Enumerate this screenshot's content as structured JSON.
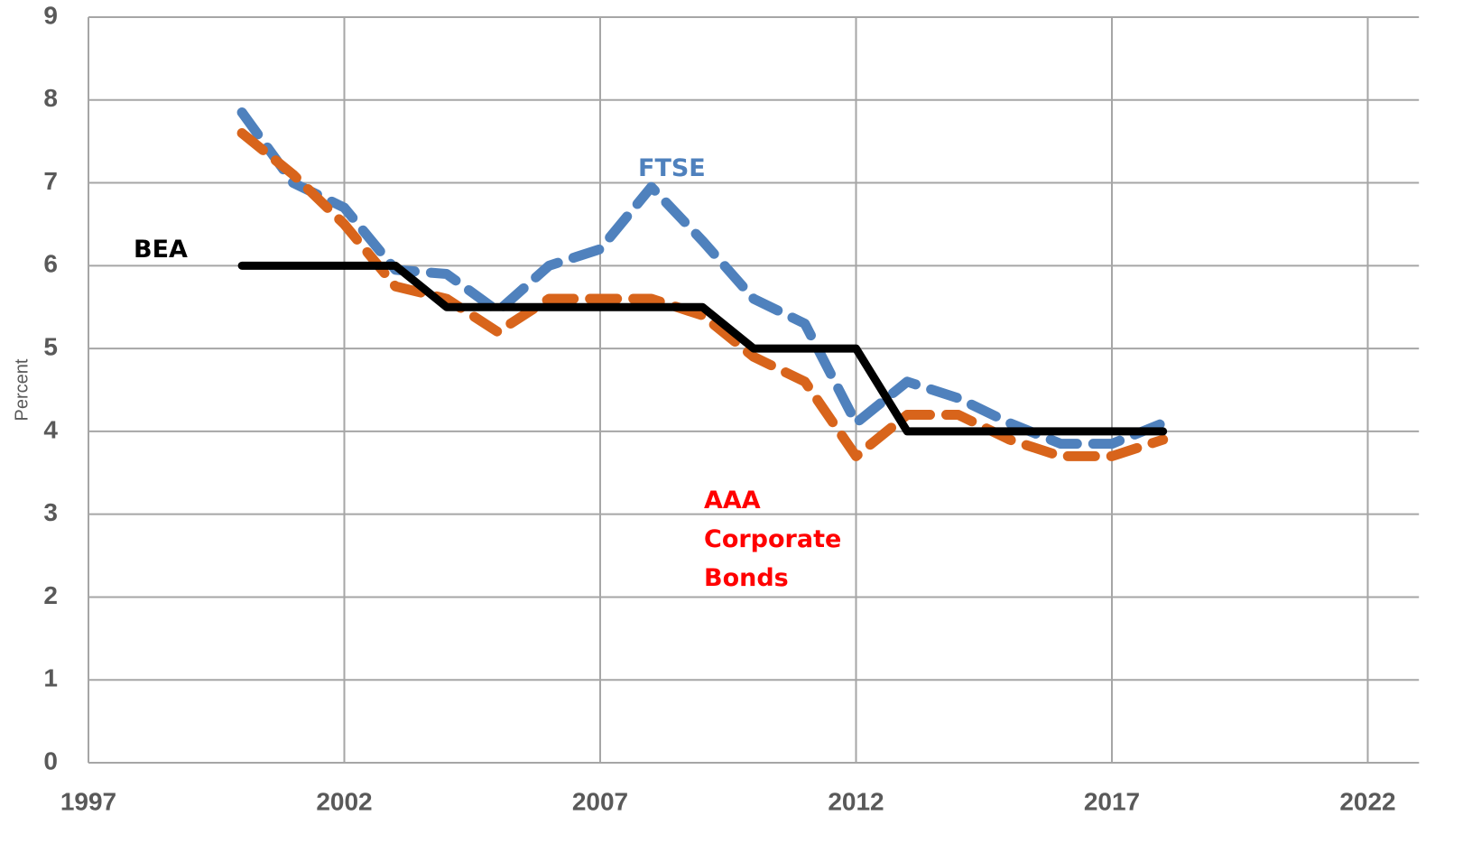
{
  "chart_data": {
    "type": "line",
    "y_label": "Percent",
    "x": [
      2000,
      2001,
      2002,
      2003,
      2004,
      2005,
      2006,
      2007,
      2008,
      2009,
      2010,
      2011,
      2012,
      2013,
      2014,
      2015,
      2016,
      2017,
      2018
    ],
    "series": [
      {
        "name": "BEA",
        "color": "#000000",
        "label_color": "#000000",
        "dashed": false,
        "values": [
          6,
          6,
          6,
          6,
          5.5,
          5.5,
          5.5,
          5.5,
          5.5,
          5.5,
          5,
          5,
          5,
          4,
          4,
          4,
          4,
          4,
          4
        ]
      },
      {
        "name": "FTSE",
        "color": "#4f81bd",
        "label_color": "#4f81bd",
        "dashed": true,
        "values": [
          7.85,
          7.0,
          6.7,
          5.95,
          5.9,
          5.45,
          6.0,
          6.2,
          6.95,
          6.3,
          5.6,
          5.3,
          4.1,
          4.6,
          4.4,
          4.1,
          3.85,
          3.85,
          4.1
        ]
      },
      {
        "name": "AAA Corporate Bonds",
        "color": "#d8641b",
        "label_color": "#ff0000",
        "dashed": true,
        "values": [
          7.6,
          7.1,
          6.5,
          5.75,
          5.6,
          5.2,
          5.6,
          5.6,
          5.6,
          5.4,
          4.9,
          4.6,
          3.7,
          4.2,
          4.2,
          3.9,
          3.7,
          3.7,
          3.9
        ]
      }
    ],
    "xlim": [
      1997,
      2023
    ],
    "xticks": [
      1997,
      2002,
      2007,
      2012,
      2017,
      2022
    ],
    "ylim": [
      0,
      9
    ],
    "yticks": [
      0,
      1,
      2,
      3,
      4,
      5,
      6,
      7,
      8,
      9
    ],
    "grid": true
  }
}
